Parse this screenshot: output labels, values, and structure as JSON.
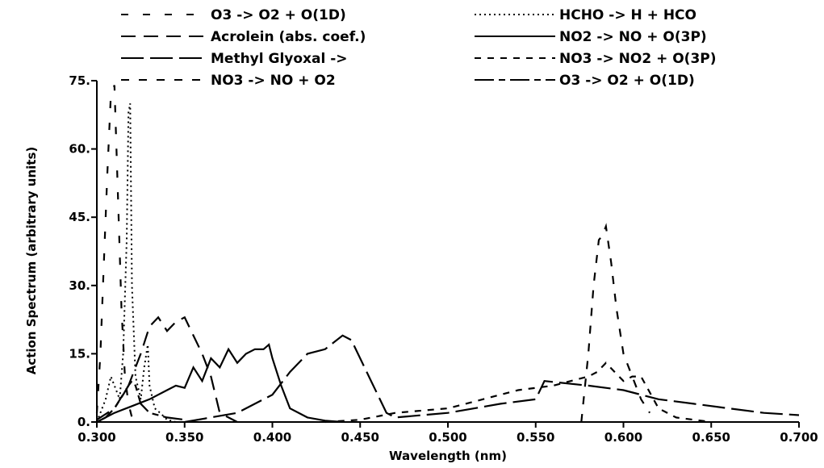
{
  "chart_data": {
    "type": "line",
    "title": "",
    "xlabel": "Wavelength  (nm)",
    "ylabel": "Action Spectrum (arbitrary units)",
    "xlim": [
      0.3,
      0.7
    ],
    "ylim": [
      0,
      75
    ],
    "x_ticks": [
      0.3,
      0.35,
      0.4,
      0.45,
      0.5,
      0.55,
      0.6,
      0.65,
      0.7
    ],
    "x_tick_labels": [
      "0.300",
      "0.350",
      "0.400",
      "0.450",
      "0.500",
      "0.550",
      "0.600",
      "0.650",
      "0.700"
    ],
    "y_ticks": [
      0,
      15,
      30,
      45,
      60,
      75
    ],
    "y_tick_labels": [
      "0.",
      "15.",
      "30.",
      "45.",
      "60.",
      "75."
    ],
    "legend_position": "top",
    "series": [
      {
        "name": "O3 -> O2 + O(1D)",
        "dash": "sparse-dash",
        "x": [
          0.3,
          0.302,
          0.304,
          0.306,
          0.308,
          0.31,
          0.312,
          0.314,
          0.316,
          0.318,
          0.32
        ],
        "y": [
          2,
          15,
          35,
          55,
          72,
          74,
          50,
          25,
          10,
          4,
          1
        ]
      },
      {
        "name": "Acrolein (abs. coef.)",
        "dash": "long-dash",
        "x": [
          0.3,
          0.31,
          0.318,
          0.325,
          0.33,
          0.335,
          0.34,
          0.345,
          0.35,
          0.36,
          0.365,
          0.37,
          0.38
        ],
        "y": [
          0.5,
          3,
          8,
          15,
          21,
          23,
          20,
          22,
          23,
          15,
          10,
          2,
          0
        ]
      },
      {
        "name": "Methyl Glyoxal ->",
        "dash": "very-long-dash",
        "x": [
          0.35,
          0.38,
          0.4,
          0.41,
          0.42,
          0.43,
          0.44,
          0.445,
          0.455,
          0.465,
          0.47,
          0.5,
          0.53,
          0.55,
          0.555,
          0.58,
          0.6,
          0.62,
          0.64,
          0.66,
          0.68,
          0.7
        ],
        "y": [
          0,
          2,
          6,
          11,
          15,
          16,
          19,
          18,
          10,
          2,
          1,
          2,
          4,
          5,
          9,
          8,
          7,
          5,
          4,
          3,
          2,
          1.5
        ]
      },
      {
        "name": "NO3 -> NO + O2",
        "dash": "medium-dash",
        "x": [
          0.576,
          0.58,
          0.583,
          0.586,
          0.588,
          0.59,
          0.593,
          0.596,
          0.6,
          0.605,
          0.61,
          0.615
        ],
        "y": [
          0,
          15,
          30,
          40,
          41,
          43,
          35,
          25,
          15,
          10,
          5,
          2
        ]
      },
      {
        "name": "HCHO -> H + HCO",
        "dash": "dotted",
        "x": [
          0.3,
          0.305,
          0.308,
          0.31,
          0.313,
          0.315,
          0.317,
          0.318,
          0.319,
          0.32,
          0.322,
          0.325,
          0.327,
          0.329,
          0.33,
          0.333,
          0.336,
          0.34,
          0.345
        ],
        "y": [
          0,
          5,
          10,
          8,
          5,
          15,
          40,
          68,
          70,
          30,
          10,
          5,
          12,
          17,
          8,
          3,
          2,
          0.5,
          0
        ]
      },
      {
        "name": "NO2 -> NO + O(3P)",
        "dash": "solid",
        "x": [
          0.3,
          0.31,
          0.32,
          0.33,
          0.34,
          0.345,
          0.35,
          0.355,
          0.36,
          0.365,
          0.37,
          0.375,
          0.38,
          0.385,
          0.39,
          0.395,
          0.398,
          0.4,
          0.405,
          0.41,
          0.42,
          0.43,
          0.44
        ],
        "y": [
          0,
          2,
          3.5,
          5,
          7,
          8,
          7.5,
          12,
          9,
          14,
          12,
          16,
          13,
          15,
          16,
          16,
          17,
          14,
          8,
          3,
          1,
          0.3,
          0
        ]
      },
      {
        "name": "NO3 -> NO2 + O(3P)",
        "dash": "short-dash",
        "x": [
          0.43,
          0.45,
          0.47,
          0.5,
          0.52,
          0.54,
          0.56,
          0.57,
          0.58,
          0.585,
          0.59,
          0.595,
          0.6,
          0.605,
          0.61,
          0.62,
          0.63,
          0.64,
          0.65
        ],
        "y": [
          0,
          0.5,
          2,
          3,
          5,
          7,
          8,
          9,
          10,
          11,
          13,
          11,
          9,
          10,
          10,
          3,
          1,
          0.5,
          0
        ]
      },
      {
        "name": "O3 -> O2 + O(1D)",
        "dash": "long-short-dash",
        "x": [
          0.3,
          0.305,
          0.31,
          0.315,
          0.318,
          0.32,
          0.322,
          0.325,
          0.33,
          0.34,
          0.35
        ],
        "y": [
          0,
          1,
          3,
          6,
          8,
          9,
          8,
          4,
          2,
          1,
          0.5
        ]
      }
    ]
  }
}
